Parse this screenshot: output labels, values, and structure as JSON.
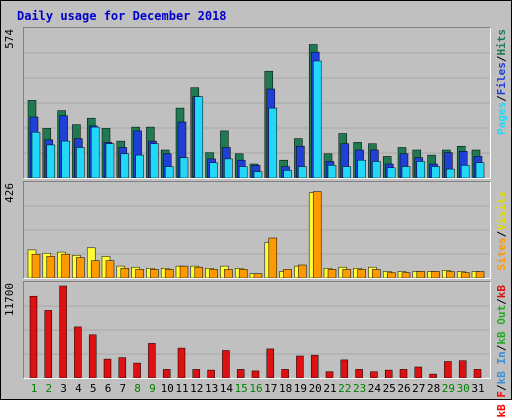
{
  "title": "Daily usage for December 2018",
  "colors": {
    "hits": "#1f7a52",
    "files": "#1f3fd6",
    "pages": "#22d8f8",
    "visits": "#ffff33",
    "sites": "#ff9900",
    "kb_in": "#3b8fd6",
    "kb_out": "#22aa22",
    "kb_f": "#ff0000",
    "kb": "#dd1111",
    "weekday_label": "#000000",
    "weekend_label": "#008000"
  },
  "panels": {
    "top": {
      "ymax": "574",
      "legend": [
        "Pages",
        "Files",
        "Hits"
      ]
    },
    "mid": {
      "ymax": "426",
      "legend": [
        "Sites",
        "Visits"
      ]
    },
    "bottom": {
      "ymax": "11700",
      "legend": [
        "kB F",
        "kB In",
        "kB Out",
        "kB"
      ]
    }
  },
  "chart_data": [
    {
      "type": "bar",
      "title": "Daily usage for December 2018",
      "categories": [
        "1",
        "2",
        "3",
        "4",
        "5",
        "6",
        "7",
        "8",
        "9",
        "10",
        "11",
        "12",
        "13",
        "14",
        "15",
        "16",
        "17",
        "18",
        "19",
        "20",
        "21",
        "22",
        "23",
        "24",
        "25",
        "26",
        "27",
        "28",
        "29",
        "30",
        "31"
      ],
      "ylim": [
        0,
        574
      ],
      "series": [
        {
          "name": "Hits",
          "values": [
            305,
            195,
            265,
            210,
            235,
            195,
            145,
            200,
            200,
            110,
            275,
            355,
            100,
            185,
            95,
            55,
            420,
            70,
            155,
            525,
            95,
            175,
            140,
            135,
            85,
            120,
            110,
            90,
            110,
            125,
            110
          ]
        },
        {
          "name": "Files",
          "values": [
            240,
            150,
            245,
            155,
            205,
            140,
            120,
            185,
            145,
            95,
            220,
            320,
            75,
            120,
            70,
            50,
            350,
            45,
            125,
            495,
            65,
            135,
            110,
            110,
            55,
            95,
            80,
            55,
            100,
            105,
            85
          ]
        },
        {
          "name": "Pages",
          "values": [
            180,
            130,
            145,
            120,
            200,
            135,
            95,
            90,
            135,
            45,
            80,
            320,
            60,
            75,
            45,
            25,
            275,
            30,
            45,
            460,
            50,
            45,
            70,
            65,
            40,
            45,
            65,
            45,
            35,
            50,
            60
          ]
        }
      ]
    },
    {
      "type": "bar",
      "categories": [
        "1",
        "2",
        "3",
        "4",
        "5",
        "6",
        "7",
        "8",
        "9",
        "10",
        "11",
        "12",
        "13",
        "14",
        "15",
        "16",
        "17",
        "18",
        "19",
        "20",
        "21",
        "22",
        "23",
        "24",
        "25",
        "26",
        "27",
        "28",
        "29",
        "30",
        "31"
      ],
      "ylim": [
        0,
        426
      ],
      "series": [
        {
          "name": "Visits",
          "values": [
            130,
            115,
            120,
            105,
            140,
            100,
            55,
            50,
            45,
            45,
            55,
            55,
            45,
            55,
            45,
            20,
            165,
            30,
            55,
            395,
            45,
            50,
            45,
            50,
            30,
            30,
            30,
            30,
            35,
            30,
            30
          ]
        },
        {
          "name": "Sites",
          "values": [
            110,
            100,
            110,
            95,
            80,
            80,
            45,
            40,
            40,
            40,
            55,
            50,
            40,
            40,
            40,
            20,
            185,
            40,
            60,
            400,
            40,
            40,
            40,
            40,
            25,
            25,
            30,
            30,
            30,
            25,
            30
          ]
        }
      ]
    },
    {
      "type": "bar",
      "categories": [
        "1",
        "2",
        "3",
        "4",
        "5",
        "6",
        "7",
        "8",
        "9",
        "10",
        "11",
        "12",
        "13",
        "14",
        "15",
        "16",
        "17",
        "18",
        "19",
        "20",
        "21",
        "22",
        "23",
        "24",
        "25",
        "26",
        "27",
        "28",
        "29",
        "30",
        "31"
      ],
      "ylim": [
        0,
        11700
      ],
      "series": [
        {
          "name": "kB",
          "values": [
            10400,
            8600,
            11700,
            6500,
            5500,
            2400,
            2600,
            1900,
            4400,
            1100,
            3800,
            1100,
            1000,
            3500,
            1100,
            900,
            3700,
            1100,
            2800,
            2900,
            800,
            2300,
            1100,
            800,
            1000,
            1100,
            1400,
            500,
            2100,
            2200,
            1100
          ]
        }
      ]
    }
  ],
  "days": [
    {
      "label": "1",
      "weekend": true
    },
    {
      "label": "2",
      "weekend": true
    },
    {
      "label": "3",
      "weekend": false
    },
    {
      "label": "4",
      "weekend": false
    },
    {
      "label": "5",
      "weekend": false
    },
    {
      "label": "6",
      "weekend": false
    },
    {
      "label": "7",
      "weekend": false
    },
    {
      "label": "8",
      "weekend": true
    },
    {
      "label": "9",
      "weekend": true
    },
    {
      "label": "10",
      "weekend": false
    },
    {
      "label": "11",
      "weekend": false
    },
    {
      "label": "12",
      "weekend": false
    },
    {
      "label": "13",
      "weekend": false
    },
    {
      "label": "14",
      "weekend": false
    },
    {
      "label": "15",
      "weekend": true
    },
    {
      "label": "16",
      "weekend": true
    },
    {
      "label": "17",
      "weekend": false
    },
    {
      "label": "18",
      "weekend": false
    },
    {
      "label": "19",
      "weekend": false
    },
    {
      "label": "20",
      "weekend": false
    },
    {
      "label": "21",
      "weekend": false
    },
    {
      "label": "22",
      "weekend": true
    },
    {
      "label": "23",
      "weekend": true
    },
    {
      "label": "24",
      "weekend": false
    },
    {
      "label": "25",
      "weekend": false
    },
    {
      "label": "26",
      "weekend": false
    },
    {
      "label": "27",
      "weekend": false
    },
    {
      "label": "28",
      "weekend": false
    },
    {
      "label": "29",
      "weekend": true
    },
    {
      "label": "30",
      "weekend": true
    },
    {
      "label": "31",
      "weekend": false
    }
  ]
}
